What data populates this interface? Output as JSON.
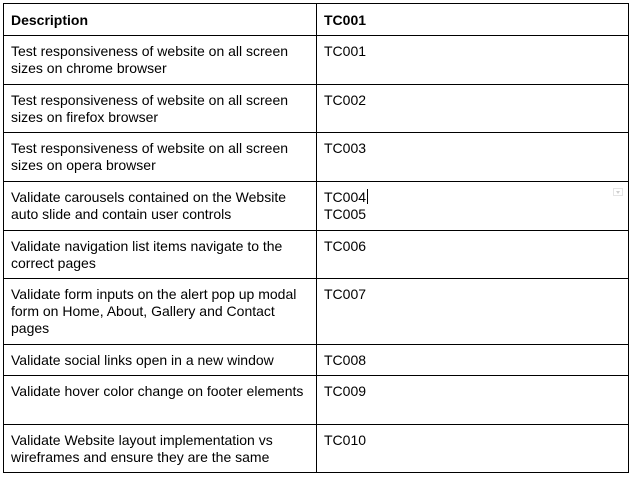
{
  "table": {
    "headers": {
      "description": "Description",
      "id": "TC001"
    },
    "rows": [
      {
        "description": "Test responsiveness of website on all screen sizes on chrome browser",
        "ids": [
          "TC001"
        ]
      },
      {
        "description": "Test responsiveness of website on all screen sizes on firefox browser",
        "ids": [
          "TC002"
        ]
      },
      {
        "description": "Test responsiveness of website on all screen sizes on opera browser",
        "ids": [
          "TC003"
        ]
      },
      {
        "description": "Validate carousels contained on the Website auto slide and contain user controls",
        "ids": [
          "TC004",
          "TC005"
        ]
      },
      {
        "description": "Validate navigation list items navigate to the correct pages",
        "ids": [
          "TC006"
        ]
      },
      {
        "description": "Validate form inputs on the alert pop up modal form on Home, About, Gallery and Contact pages",
        "ids": [
          "TC007"
        ]
      },
      {
        "description": "Validate social links open in a new window",
        "ids": [
          "TC008"
        ]
      },
      {
        "description": "Validate hover color change on footer elements",
        "ids": [
          "TC009"
        ]
      },
      {
        "description": "Validate Website layout implementation vs wireframes and ensure they are the same",
        "ids": [
          "TC010"
        ]
      }
    ]
  },
  "active_cell": {
    "row_index": 3,
    "icon": "chevron-down-icon"
  }
}
